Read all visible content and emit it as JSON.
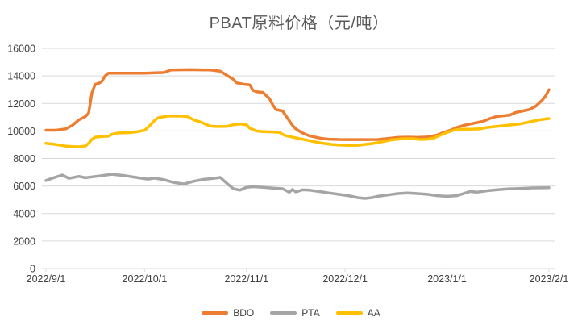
{
  "chart_data": {
    "type": "line",
    "title": "PBAT原料价格（元/吨）",
    "x_start": "2022/9/1",
    "x_end": "2023/2/1",
    "x_ticks": [
      "2022/9/1",
      "2022/10/1",
      "2022/11/1",
      "2022/12/1",
      "2023/1/1",
      "2023/2/1"
    ],
    "y_axis": {
      "min": 0,
      "max": 16000,
      "step": 2000,
      "tick_labels": [
        "0",
        "2000",
        "4000",
        "6000",
        "8000",
        "10000",
        "12000",
        "14000",
        "16000"
      ]
    },
    "grid": true,
    "legend_position": "bottom",
    "colors": {
      "bdo": "#ED7D31",
      "pta": "#A5A5A5",
      "aa": "#FFC000",
      "gridline": "#D9D9D9",
      "axis_text": "#404040",
      "title_text": "#595959"
    },
    "series": [
      {
        "name": "BDO",
        "color": "#ED7D31",
        "points": [
          [
            "2022/9/1",
            10050
          ],
          [
            "2022/9/4",
            10050
          ],
          [
            "2022/9/7",
            10150
          ],
          [
            "2022/9/9",
            10400
          ],
          [
            "2022/9/11",
            10800
          ],
          [
            "2022/9/13",
            11050
          ],
          [
            "2022/9/14",
            11300
          ],
          [
            "2022/9/15",
            12800
          ],
          [
            "2022/9/16",
            13400
          ],
          [
            "2022/9/17",
            13450
          ],
          [
            "2022/9/18",
            13600
          ],
          [
            "2022/9/19",
            14000
          ],
          [
            "2022/9/20",
            14200
          ],
          [
            "2022/9/25",
            14200
          ],
          [
            "2022/10/1",
            14200
          ],
          [
            "2022/10/7",
            14250
          ],
          [
            "2022/10/9",
            14430
          ],
          [
            "2022/10/15",
            14450
          ],
          [
            "2022/10/21",
            14430
          ],
          [
            "2022/10/24",
            14350
          ],
          [
            "2022/10/26",
            14050
          ],
          [
            "2022/10/28",
            13750
          ],
          [
            "2022/10/29",
            13500
          ],
          [
            "2022/10/31",
            13400
          ],
          [
            "2022/11/2",
            13350
          ],
          [
            "2022/11/3",
            12950
          ],
          [
            "2022/11/4",
            12850
          ],
          [
            "2022/11/6",
            12800
          ],
          [
            "2022/11/8",
            12350
          ],
          [
            "2022/11/9",
            11900
          ],
          [
            "2022/11/10",
            11550
          ],
          [
            "2022/11/12",
            11450
          ],
          [
            "2022/11/13",
            11100
          ],
          [
            "2022/11/14",
            10750
          ],
          [
            "2022/11/15",
            10400
          ],
          [
            "2022/11/16",
            10150
          ],
          [
            "2022/11/17",
            10000
          ],
          [
            "2022/11/18",
            9850
          ],
          [
            "2022/11/20",
            9650
          ],
          [
            "2022/11/22",
            9550
          ],
          [
            "2022/11/24",
            9450
          ],
          [
            "2022/11/26",
            9400
          ],
          [
            "2022/11/29",
            9380
          ],
          [
            "2022/12/3",
            9370
          ],
          [
            "2022/12/7",
            9370
          ],
          [
            "2022/12/11",
            9380
          ],
          [
            "2022/12/14",
            9450
          ],
          [
            "2022/12/17",
            9530
          ],
          [
            "2022/12/20",
            9550
          ],
          [
            "2022/12/23",
            9530
          ],
          [
            "2022/12/26",
            9560
          ],
          [
            "2022/12/29",
            9700
          ],
          [
            "2022/12/31",
            9900
          ],
          [
            "2023/1/2",
            10050
          ],
          [
            "2023/1/4",
            10250
          ],
          [
            "2023/1/6",
            10400
          ],
          [
            "2023/1/8",
            10500
          ],
          [
            "2023/1/10",
            10600
          ],
          [
            "2023/1/12",
            10700
          ],
          [
            "2023/1/14",
            10900
          ],
          [
            "2023/1/16",
            11050
          ],
          [
            "2023/1/18",
            11100
          ],
          [
            "2023/1/20",
            11150
          ],
          [
            "2023/1/22",
            11350
          ],
          [
            "2023/1/24",
            11450
          ],
          [
            "2023/1/26",
            11550
          ],
          [
            "2023/1/28",
            11800
          ],
          [
            "2023/1/30",
            12250
          ],
          [
            "2023/1/31",
            12550
          ],
          [
            "2023/2/1",
            13000
          ]
        ]
      },
      {
        "name": "PTA",
        "color": "#A5A5A5",
        "points": [
          [
            "2022/9/1",
            6400
          ],
          [
            "2022/9/4",
            6650
          ],
          [
            "2022/9/6",
            6800
          ],
          [
            "2022/9/8",
            6550
          ],
          [
            "2022/9/11",
            6700
          ],
          [
            "2022/9/13",
            6600
          ],
          [
            "2022/9/17",
            6720
          ],
          [
            "2022/9/21",
            6850
          ],
          [
            "2022/9/25",
            6750
          ],
          [
            "2022/9/29",
            6600
          ],
          [
            "2022/10/2",
            6500
          ],
          [
            "2022/10/4",
            6570
          ],
          [
            "2022/10/7",
            6450
          ],
          [
            "2022/10/10",
            6250
          ],
          [
            "2022/10/13",
            6150
          ],
          [
            "2022/10/16",
            6350
          ],
          [
            "2022/10/19",
            6480
          ],
          [
            "2022/10/22",
            6550
          ],
          [
            "2022/10/24",
            6620
          ],
          [
            "2022/10/26",
            6200
          ],
          [
            "2022/10/28",
            5800
          ],
          [
            "2022/10/30",
            5700
          ],
          [
            "2022/11/1",
            5900
          ],
          [
            "2022/11/3",
            5950
          ],
          [
            "2022/11/6",
            5900
          ],
          [
            "2022/11/9",
            5850
          ],
          [
            "2022/11/12",
            5800
          ],
          [
            "2022/11/14",
            5550
          ],
          [
            "2022/11/15",
            5750
          ],
          [
            "2022/11/16",
            5570
          ],
          [
            "2022/11/18",
            5720
          ],
          [
            "2022/11/20",
            5700
          ],
          [
            "2022/11/23",
            5600
          ],
          [
            "2022/11/26",
            5500
          ],
          [
            "2022/11/29",
            5400
          ],
          [
            "2022/12/2",
            5300
          ],
          [
            "2022/12/5",
            5150
          ],
          [
            "2022/12/7",
            5100
          ],
          [
            "2022/12/9",
            5150
          ],
          [
            "2022/12/11",
            5250
          ],
          [
            "2022/12/14",
            5350
          ],
          [
            "2022/12/17",
            5450
          ],
          [
            "2022/12/20",
            5500
          ],
          [
            "2022/12/23",
            5450
          ],
          [
            "2022/12/26",
            5400
          ],
          [
            "2022/12/29",
            5300
          ],
          [
            "2023/1/1",
            5250
          ],
          [
            "2023/1/4",
            5300
          ],
          [
            "2023/1/6",
            5450
          ],
          [
            "2023/1/8",
            5600
          ],
          [
            "2023/1/10",
            5550
          ],
          [
            "2023/1/13",
            5650
          ],
          [
            "2023/1/16",
            5720
          ],
          [
            "2023/1/19",
            5780
          ],
          [
            "2023/1/23",
            5820
          ],
          [
            "2023/1/27",
            5860
          ],
          [
            "2023/2/1",
            5880
          ]
        ]
      },
      {
        "name": "AA",
        "color": "#FFC000",
        "points": [
          [
            "2022/9/1",
            9100
          ],
          [
            "2022/9/3",
            9050
          ],
          [
            "2022/9/5",
            8980
          ],
          [
            "2022/9/7",
            8900
          ],
          [
            "2022/9/9",
            8870
          ],
          [
            "2022/9/11",
            8850
          ],
          [
            "2022/9/13",
            8900
          ],
          [
            "2022/9/14",
            9100
          ],
          [
            "2022/9/15",
            9400
          ],
          [
            "2022/9/16",
            9550
          ],
          [
            "2022/9/18",
            9600
          ],
          [
            "2022/9/20",
            9620
          ],
          [
            "2022/9/21",
            9750
          ],
          [
            "2022/9/23",
            9850
          ],
          [
            "2022/9/26",
            9870
          ],
          [
            "2022/9/29",
            9950
          ],
          [
            "2022/10/1",
            10050
          ],
          [
            "2022/10/2",
            10250
          ],
          [
            "2022/10/4",
            10750
          ],
          [
            "2022/10/5",
            10950
          ],
          [
            "2022/10/8",
            11080
          ],
          [
            "2022/10/12",
            11080
          ],
          [
            "2022/10/14",
            11050
          ],
          [
            "2022/10/16",
            10800
          ],
          [
            "2022/10/18",
            10650
          ],
          [
            "2022/10/19",
            10550
          ],
          [
            "2022/10/21",
            10350
          ],
          [
            "2022/10/23",
            10320
          ],
          [
            "2022/10/26",
            10330
          ],
          [
            "2022/10/28",
            10450
          ],
          [
            "2022/10/30",
            10500
          ],
          [
            "2022/11/1",
            10450
          ],
          [
            "2022/11/2",
            10200
          ],
          [
            "2022/11/4",
            10000
          ],
          [
            "2022/11/6",
            9950
          ],
          [
            "2022/11/9",
            9930
          ],
          [
            "2022/11/11",
            9900
          ],
          [
            "2022/11/12",
            9750
          ],
          [
            "2022/11/13",
            9650
          ],
          [
            "2022/11/15",
            9550
          ],
          [
            "2022/11/17",
            9450
          ],
          [
            "2022/11/19",
            9350
          ],
          [
            "2022/11/21",
            9250
          ],
          [
            "2022/11/23",
            9150
          ],
          [
            "2022/11/25",
            9080
          ],
          [
            "2022/11/27",
            9020
          ],
          [
            "2022/11/29",
            8980
          ],
          [
            "2022/12/2",
            8950
          ],
          [
            "2022/12/5",
            8960
          ],
          [
            "2022/12/7",
            9020
          ],
          [
            "2022/12/9",
            9080
          ],
          [
            "2022/12/11",
            9150
          ],
          [
            "2022/12/13",
            9250
          ],
          [
            "2022/12/15",
            9350
          ],
          [
            "2022/12/18",
            9420
          ],
          [
            "2022/12/21",
            9450
          ],
          [
            "2022/12/24",
            9380
          ],
          [
            "2022/12/26",
            9400
          ],
          [
            "2022/12/28",
            9480
          ],
          [
            "2022/12/30",
            9700
          ],
          [
            "2023/1/1",
            9900
          ],
          [
            "2023/1/3",
            10050
          ],
          [
            "2023/1/5",
            10120
          ],
          [
            "2023/1/8",
            10130
          ],
          [
            "2023/1/11",
            10150
          ],
          [
            "2023/1/13",
            10250
          ],
          [
            "2023/1/15",
            10300
          ],
          [
            "2023/1/17",
            10350
          ],
          [
            "2023/1/20",
            10430
          ],
          [
            "2023/1/23",
            10500
          ],
          [
            "2023/1/25",
            10600
          ],
          [
            "2023/1/27",
            10700
          ],
          [
            "2023/1/29",
            10800
          ],
          [
            "2023/1/31",
            10870
          ],
          [
            "2023/2/1",
            10900
          ]
        ]
      }
    ]
  }
}
